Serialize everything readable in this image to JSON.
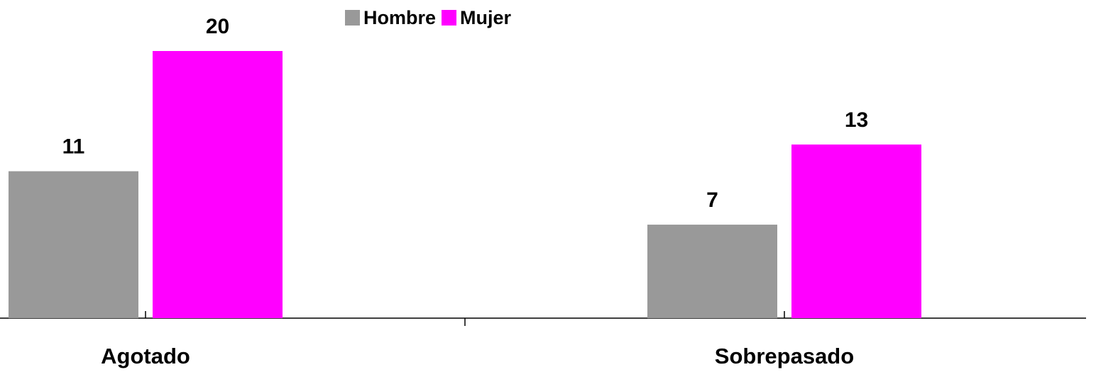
{
  "chart_data": {
    "type": "bar",
    "categories": [
      "Agotado",
      "Sobrepasado"
    ],
    "series": [
      {
        "name": "Hombre",
        "color": "#999999",
        "values": [
          11,
          7
        ]
      },
      {
        "name": "Mujer",
        "color": "#ff00ff",
        "values": [
          20,
          13
        ]
      }
    ]
  }
}
